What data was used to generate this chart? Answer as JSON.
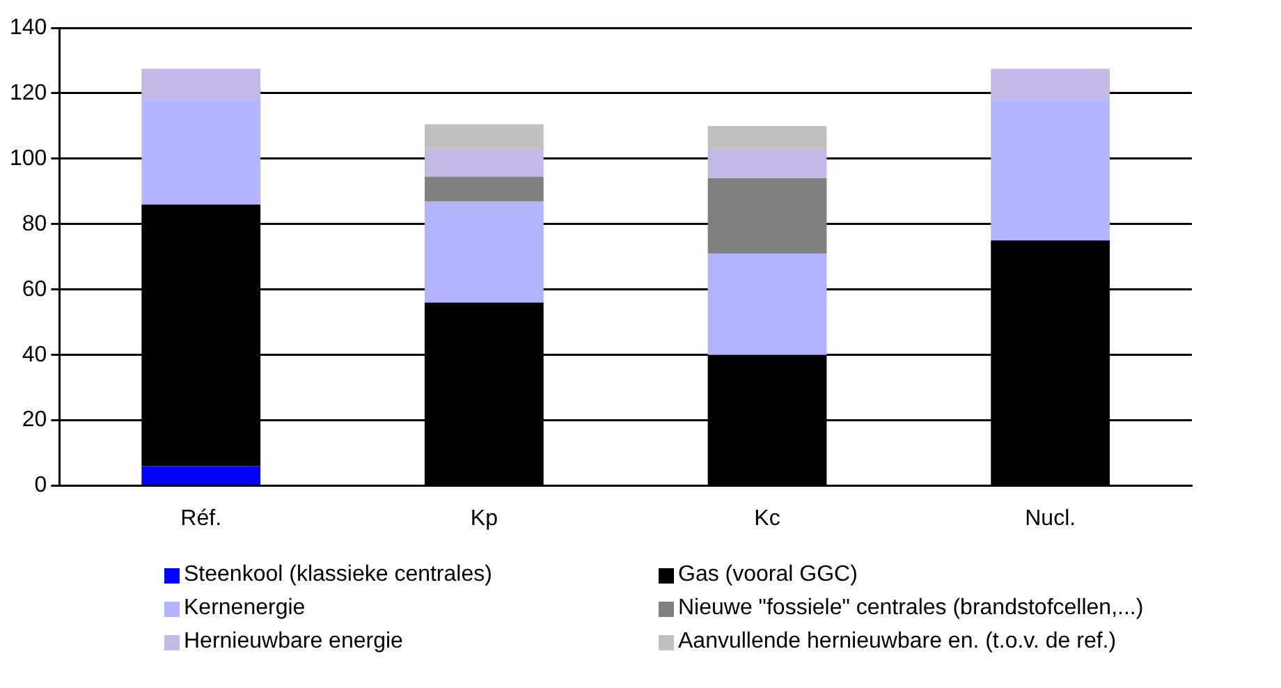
{
  "chart_data": {
    "type": "bar",
    "stacked": true,
    "categories": [
      "Réf.",
      "Kp",
      "Kc",
      "Nucl."
    ],
    "series": [
      {
        "name": "Steenkool (klassieke centrales)",
        "color": "#0000ff",
        "values": [
          6,
          null,
          null,
          null
        ]
      },
      {
        "name": "Gas (vooral GGC)",
        "color": "#000000",
        "values": [
          80,
          56,
          40,
          75
        ]
      },
      {
        "name": "Kernenergie",
        "color": "#b3b3ff",
        "values": [
          32,
          31,
          31,
          43
        ]
      },
      {
        "name": "Nieuwe \"fossiele\" centrales (brandstofcellen,...)",
        "color": "#808080",
        "values": [
          null,
          7.5,
          23,
          null
        ]
      },
      {
        "name": "Hernieuwbare energie",
        "color": "#c4b8e6",
        "values": [
          9.5,
          8.5,
          9,
          9.5
        ]
      },
      {
        "name": "Aanvullende hernieuwbare en. (t.o.v. de ref.)",
        "color": "#c0c0c0",
        "values": [
          null,
          7.5,
          7,
          null
        ]
      }
    ],
    "ylim": [
      0,
      140
    ],
    "yticks": [
      0,
      20,
      40,
      60,
      80,
      100,
      120,
      140
    ],
    "grid": "y",
    "legend": "bottom"
  }
}
